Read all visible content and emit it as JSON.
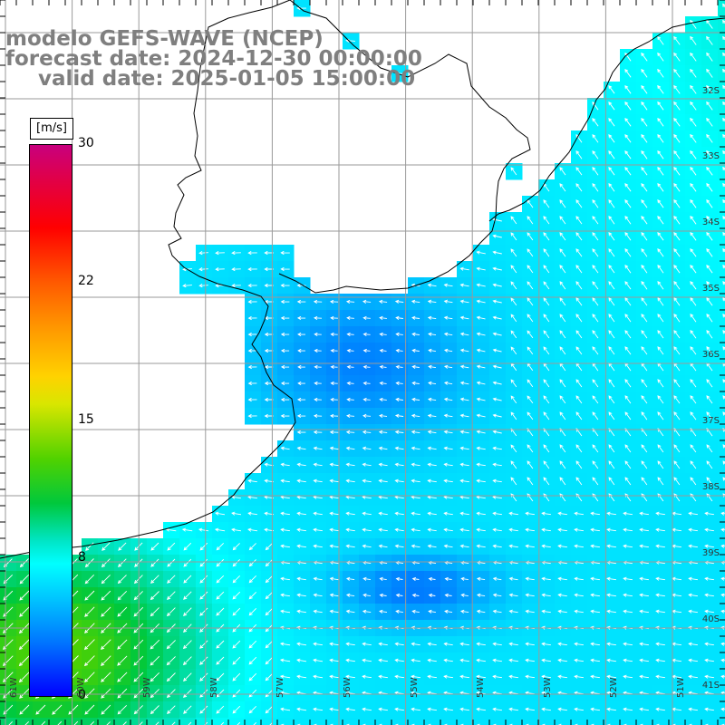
{
  "title": {
    "line1": "modelo GEFS-WAVE (NCEP)",
    "line2": "forecast date: 2024-12-30 00:00:00",
    "line3": "valid date: 2025-01-05 15:00:00"
  },
  "colorbar": {
    "unit": "[m/s]",
    "ticks": [
      "30",
      "22",
      "15",
      "8",
      "0"
    ],
    "tick_values": [
      30,
      22,
      15,
      8,
      0
    ],
    "range": [
      0,
      30
    ],
    "colors": [
      "#0000ff",
      "#0078ff",
      "#00c8ff",
      "#00ffff",
      "#00e6c8",
      "#00c83c",
      "#50d200",
      "#d9e600",
      "#ffd200",
      "#ff9600",
      "#ff5a00",
      "#ff0000",
      "#e0004a",
      "#c8007e"
    ]
  },
  "map": {
    "lat_labels": [
      "32S",
      "33S",
      "34S",
      "35S",
      "36S",
      "37S",
      "38S",
      "39S",
      "40S",
      "41S"
    ],
    "lon_labels": [
      "61W",
      "60W",
      "59W",
      "58W",
      "57W",
      "56W",
      "55W",
      "54W",
      "53W",
      "52W",
      "51W"
    ],
    "land_color": "#ffffff",
    "grid_color": "#a0a0a0",
    "arrow_color": "#ffffff"
  }
}
